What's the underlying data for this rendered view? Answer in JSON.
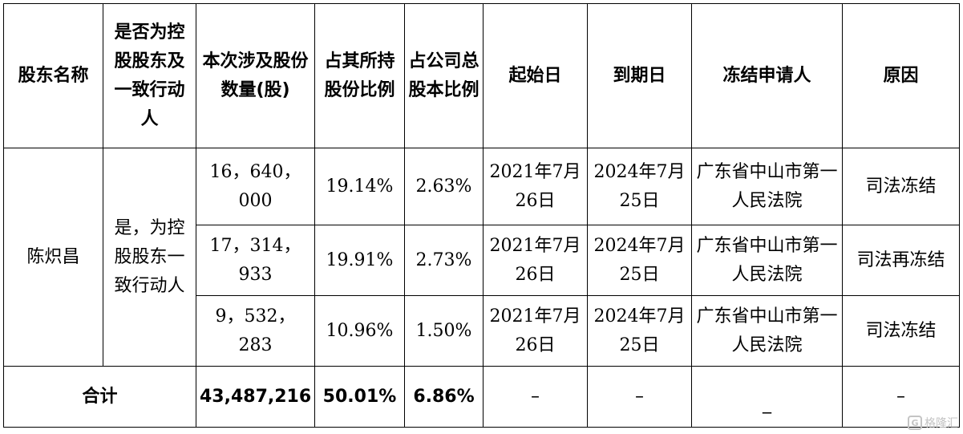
{
  "table": {
    "headers": [
      "股东名称",
      "是否为控股股东及一致行动人",
      "本次涉及股份数量(股)",
      "占其所持股份比例",
      "占公司总股本比例",
      "起始日",
      "到期日",
      "冻结申请人",
      "原因"
    ],
    "shareholder": "陈炽昌",
    "relation": "是，为控股股东一致行动人",
    "rows": [
      {
        "shares": "16，640，000",
        "pct_held": "19.14%",
        "pct_total": "2.63%",
        "start": "2021年7月26日",
        "end": "2024年7月25日",
        "applicant": "广东省中山市第一人民法院",
        "reason": "司法冻结"
      },
      {
        "shares": "17，314，933",
        "pct_held": "19.91%",
        "pct_total": "2.73%",
        "start": "2021年7月26日",
        "end": "2024年7月25日",
        "applicant": "广东省中山市第一人民法院",
        "reason": "司法再冻结"
      },
      {
        "shares": "9，532，283",
        "pct_held": "10.96%",
        "pct_total": "1.50%",
        "start": "2021年7月26日",
        "end": "2024年7月25日",
        "applicant": "广东省中山市第一人民法院",
        "reason": "司法冻结"
      }
    ],
    "total": {
      "label": "合计",
      "shares": "43,487,216",
      "pct_held": "50.01%",
      "pct_total": "6.86%",
      "start": "–",
      "end": "–",
      "applicant": "_",
      "reason": "–"
    }
  },
  "watermark": {
    "logo": "G",
    "text": "格隆汇"
  }
}
